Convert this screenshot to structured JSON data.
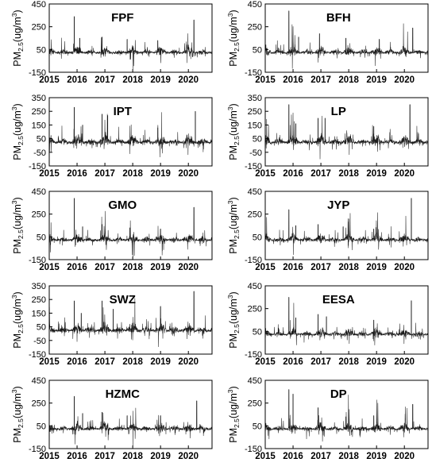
{
  "chart_data": {
    "type": "line",
    "layout": "5 rows x 2 columns of small multiples",
    "x_tick_labels": [
      "2015",
      "2016",
      "2017",
      "2018",
      "2019",
      "2020"
    ],
    "ylabel": "PM2.5(ug/m3)",
    "ylabel_parts": {
      "prefix": "PM",
      "subscript": "2.5",
      "middle": "(ug/m",
      "superscript": "3",
      "suffix": ")"
    },
    "grid": false,
    "line_color": "#1a1a1a",
    "panels": [
      {
        "title": "FPF",
        "ylim": [
          -150,
          450
        ],
        "yticks": [
          "450",
          "250",
          "50",
          "-150"
        ],
        "peaks": [
          [
            2015.9,
            340
          ],
          [
            2016.9,
            160
          ],
          [
            2017.8,
            140
          ],
          [
            2020.2,
            310
          ],
          [
            2016.1,
            150
          ],
          [
            2018.9,
            130
          ]
        ]
      },
      {
        "title": "BFH",
        "ylim": [
          -150,
          450
        ],
        "yticks": [
          "450",
          "250",
          "50",
          "-150"
        ],
        "peaks": [
          [
            2015.85,
            390
          ],
          [
            2016.95,
            190
          ],
          [
            2017.9,
            150
          ],
          [
            2020.3,
            240
          ],
          [
            2019.1,
            140
          ],
          [
            2016.2,
            160
          ]
        ]
      },
      {
        "title": "IPT",
        "ylim": [
          -150,
          350
        ],
        "yticks": [
          "350",
          "250",
          "150",
          "50",
          "-50",
          "-150"
        ],
        "peaks": [
          [
            2015.9,
            280
          ],
          [
            2016.9,
            230
          ],
          [
            2017.1,
            220
          ],
          [
            2020.25,
            250
          ],
          [
            2018.9,
            130
          ],
          [
            2016.2,
            150
          ]
        ]
      },
      {
        "title": "LP",
        "ylim": [
          -150,
          350
        ],
        "yticks": [
          "350",
          "250",
          "150",
          "50",
          "-50",
          "-150"
        ],
        "peaks": [
          [
            2015.85,
            300
          ],
          [
            2016.9,
            200
          ],
          [
            2017.15,
            200
          ],
          [
            2020.2,
            300
          ],
          [
            2018.9,
            140
          ],
          [
            2016.1,
            160
          ]
        ]
      },
      {
        "title": "GMO",
        "ylim": [
          -150,
          450
        ],
        "yticks": [
          "450",
          "250",
          "50",
          "-150"
        ],
        "peaks": [
          [
            2015.9,
            390
          ],
          [
            2016.9,
            160
          ],
          [
            2017.9,
            130
          ],
          [
            2020.2,
            310
          ],
          [
            2019.0,
            120
          ],
          [
            2016.2,
            140
          ]
        ]
      },
      {
        "title": "JYP",
        "ylim": [
          -150,
          450
        ],
        "yticks": [
          "450",
          "250",
          "50",
          "-150"
        ],
        "peaks": [
          [
            2015.85,
            290
          ],
          [
            2016.9,
            160
          ],
          [
            2017.8,
            140
          ],
          [
            2020.25,
            390
          ],
          [
            2018.9,
            120
          ],
          [
            2016.1,
            150
          ]
        ]
      },
      {
        "title": "SWZ",
        "ylim": [
          -150,
          350
        ],
        "yticks": [
          "350",
          "250",
          "150",
          "50",
          "-50",
          "-150"
        ],
        "peaks": [
          [
            2015.9,
            240
          ],
          [
            2016.9,
            240
          ],
          [
            2017.3,
            180
          ],
          [
            2020.2,
            310
          ],
          [
            2019.0,
            200
          ],
          [
            2016.15,
            150
          ]
        ]
      },
      {
        "title": "EESA",
        "ylim": [
          -150,
          450
        ],
        "yticks": [
          "450",
          "250",
          "50",
          "-150"
        ],
        "peaks": [
          [
            2015.85,
            350
          ],
          [
            2016.9,
            200
          ],
          [
            2017.2,
            180
          ],
          [
            2020.25,
            320
          ],
          [
            2018.9,
            150
          ],
          [
            2016.1,
            170
          ]
        ]
      },
      {
        "title": "HZMC",
        "ylim": [
          -150,
          450
        ],
        "yticks": [
          "450",
          "250",
          "50",
          "-150"
        ],
        "peaks": [
          [
            2015.9,
            310
          ],
          [
            2016.9,
            170
          ],
          [
            2017.8,
            140
          ],
          [
            2020.3,
            270
          ],
          [
            2019.0,
            140
          ],
          [
            2016.2,
            160
          ]
        ]
      },
      {
        "title": "DP",
        "ylim": [
          -150,
          450
        ],
        "yticks": [
          "450",
          "250",
          "50",
          "-150"
        ],
        "peaks": [
          [
            2015.85,
            370
          ],
          [
            2016.0,
            330
          ],
          [
            2016.9,
            210
          ],
          [
            2020.3,
            240
          ],
          [
            2018.9,
            140
          ],
          [
            2017.9,
            130
          ]
        ]
      }
    ]
  }
}
